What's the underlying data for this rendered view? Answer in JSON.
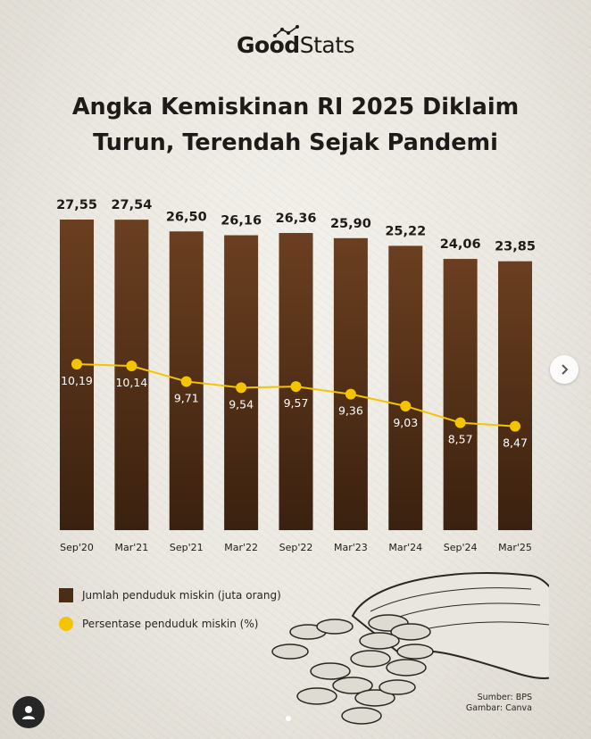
{
  "brand": {
    "logo_good": "Good",
    "logo_stats": "Stats"
  },
  "title_lines": [
    "Angka Kemiskinan RI 2025 Diklaim",
    "Turun, Terendah Sejak Pandemi"
  ],
  "chart_data": {
    "type": "bar",
    "categories": [
      "Sep'20",
      "Mar'21",
      "Sep'21",
      "Mar'22",
      "Sep'22",
      "Mar'23",
      "Mar'24",
      "Sep'24",
      "Mar'25"
    ],
    "series": [
      {
        "name": "Jumlah penduduk miskin (juta orang)",
        "kind": "bar",
        "values": [
          27.55,
          27.54,
          26.5,
          26.16,
          26.36,
          25.9,
          25.22,
          24.06,
          23.85
        ],
        "labels": [
          "27,55",
          "27,54",
          "26,50",
          "26,16",
          "26,36",
          "25,90",
          "25,22",
          "24,06",
          "23,85"
        ],
        "color": "#4b2c15"
      },
      {
        "name": "Persentase penduduk miskin (%)",
        "kind": "line",
        "values": [
          10.19,
          10.14,
          9.71,
          9.54,
          9.57,
          9.36,
          9.03,
          8.57,
          8.47
        ],
        "labels": [
          "10,19",
          "10,14",
          "9,71",
          "9,54",
          "9,57",
          "9,36",
          "9,03",
          "8,57",
          "8,47"
        ],
        "color": "#f5c400"
      }
    ],
    "legend": [
      "Jumlah penduduk miskin (juta orang)",
      "Persentase penduduk miskin (%)"
    ],
    "legend_position": "bottom-left",
    "grid": false
  },
  "source": {
    "line1": "Sumber: BPS",
    "line2": "Gambar: Canva"
  },
  "carousel": {
    "icon": "chevron-right-icon"
  },
  "profile": {
    "icon": "user-icon"
  }
}
